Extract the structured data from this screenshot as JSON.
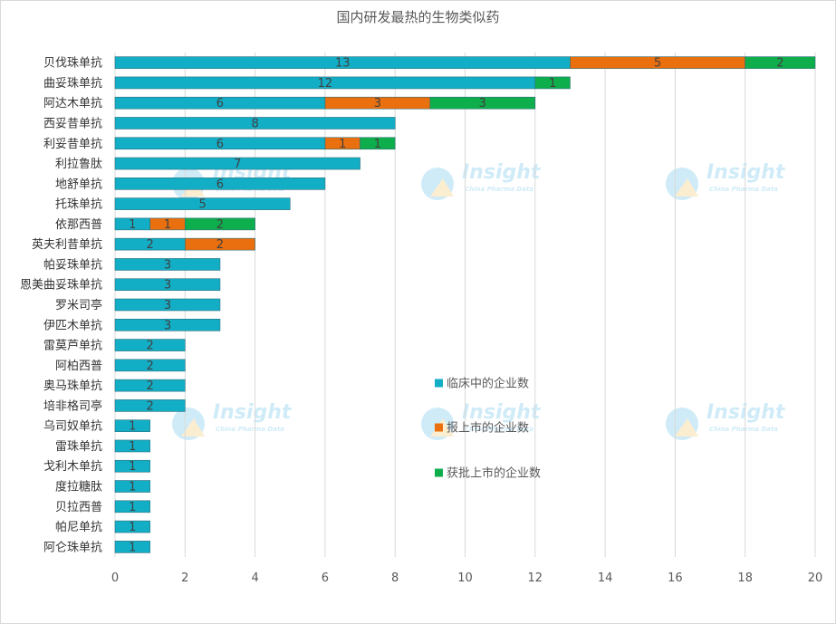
{
  "chart_data": {
    "type": "bar",
    "orientation": "horizontal",
    "stacked": true,
    "title": "国内研发最热的生物类似药",
    "categories": [
      "贝伐珠单抗",
      "曲妥珠单抗",
      "阿达木单抗",
      "西妥昔单抗",
      "利妥昔单抗",
      "利拉鲁肽",
      "地舒单抗",
      "托珠单抗",
      "依那西普",
      "英夫利昔单抗",
      "帕妥珠单抗",
      "恩美曲妥珠单抗",
      "罗米司亭",
      "伊匹木单抗",
      "雷莫芦单抗",
      "阿柏西普",
      "奥马珠单抗",
      "培非格司亭",
      "乌司奴单抗",
      "雷珠单抗",
      "戈利木单抗",
      "度拉糖肽",
      "贝拉西普",
      "帕尼单抗",
      "阿仑珠单抗"
    ],
    "series": [
      {
        "name": "临床中的企业数",
        "color": "#12aec6",
        "values": [
          13,
          12,
          6,
          8,
          6,
          7,
          6,
          5,
          1,
          2,
          3,
          3,
          3,
          3,
          2,
          2,
          2,
          2,
          1,
          1,
          1,
          1,
          1,
          1,
          1
        ]
      },
      {
        "name": "报上市的企业数",
        "color": "#ea6f0e",
        "values": [
          5,
          0,
          3,
          0,
          1,
          0,
          0,
          0,
          1,
          2,
          0,
          0,
          0,
          0,
          0,
          0,
          0,
          0,
          0,
          0,
          0,
          0,
          0,
          0,
          0
        ]
      },
      {
        "name": "获批上市的企业数",
        "color": "#0fae4c",
        "values": [
          2,
          1,
          3,
          0,
          1,
          0,
          0,
          0,
          2,
          0,
          0,
          0,
          0,
          0,
          0,
          0,
          0,
          0,
          0,
          0,
          0,
          0,
          0,
          0,
          0
        ]
      }
    ],
    "xlim": [
      0,
      20
    ],
    "x_ticks": [
      0,
      2,
      4,
      6,
      8,
      10,
      12,
      14,
      16,
      18,
      20
    ],
    "grid": true,
    "legend_position": "right-middle"
  },
  "watermark": {
    "text": "Insight",
    "subtext": "China Pharma Data"
  }
}
